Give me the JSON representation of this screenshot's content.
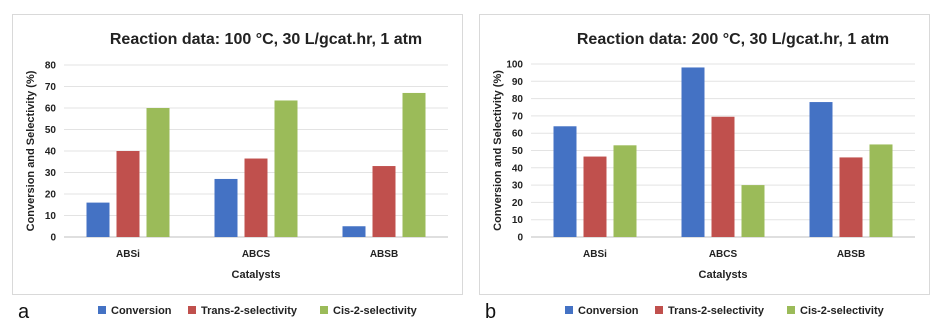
{
  "chart_data": [
    {
      "type": "bar",
      "panel_label": "a",
      "title": "Reaction data: 100 °C, 30 L/gcat.hr, 1 atm",
      "xlabel": "Catalysts",
      "ylabel": "Conversion and Selectivity (%)",
      "ylim": [
        0,
        80
      ],
      "yticks": [
        0,
        10,
        20,
        30,
        40,
        50,
        60,
        70,
        80
      ],
      "grid": true,
      "legend_position": "bottom",
      "categories": [
        "ABSi",
        "ABCS",
        "ABSB"
      ],
      "series": [
        {
          "name": "Conversion",
          "color": "#4472c4",
          "values": [
            16,
            27,
            5
          ]
        },
        {
          "name": "Trans-2-selectivity",
          "color": "#c0504d",
          "values": [
            40,
            36.5,
            33
          ]
        },
        {
          "name": "Cis-2-selectivity",
          "color": "#9bbb59",
          "values": [
            60,
            63.5,
            67
          ]
        }
      ]
    },
    {
      "type": "bar",
      "panel_label": "b",
      "title": "Reaction data: 200 °C, 30 L/gcat.hr, 1 atm",
      "xlabel": "Catalysts",
      "ylabel": "Conversion and Selectivity (%)",
      "ylim": [
        0,
        100
      ],
      "yticks": [
        0,
        10,
        20,
        30,
        40,
        50,
        60,
        70,
        80,
        90,
        100
      ],
      "grid": true,
      "legend_position": "bottom",
      "categories": [
        "ABSi",
        "ABCS",
        "ABSB"
      ],
      "series": [
        {
          "name": "Conversion",
          "color": "#4472c4",
          "values": [
            64,
            98,
            78
          ]
        },
        {
          "name": "Trans-2-selectivity",
          "color": "#c0504d",
          "values": [
            46.5,
            69.5,
            46
          ]
        },
        {
          "name": "Cis-2-selectivity",
          "color": "#9bbb59",
          "values": [
            53,
            30,
            53.5
          ]
        }
      ]
    }
  ]
}
